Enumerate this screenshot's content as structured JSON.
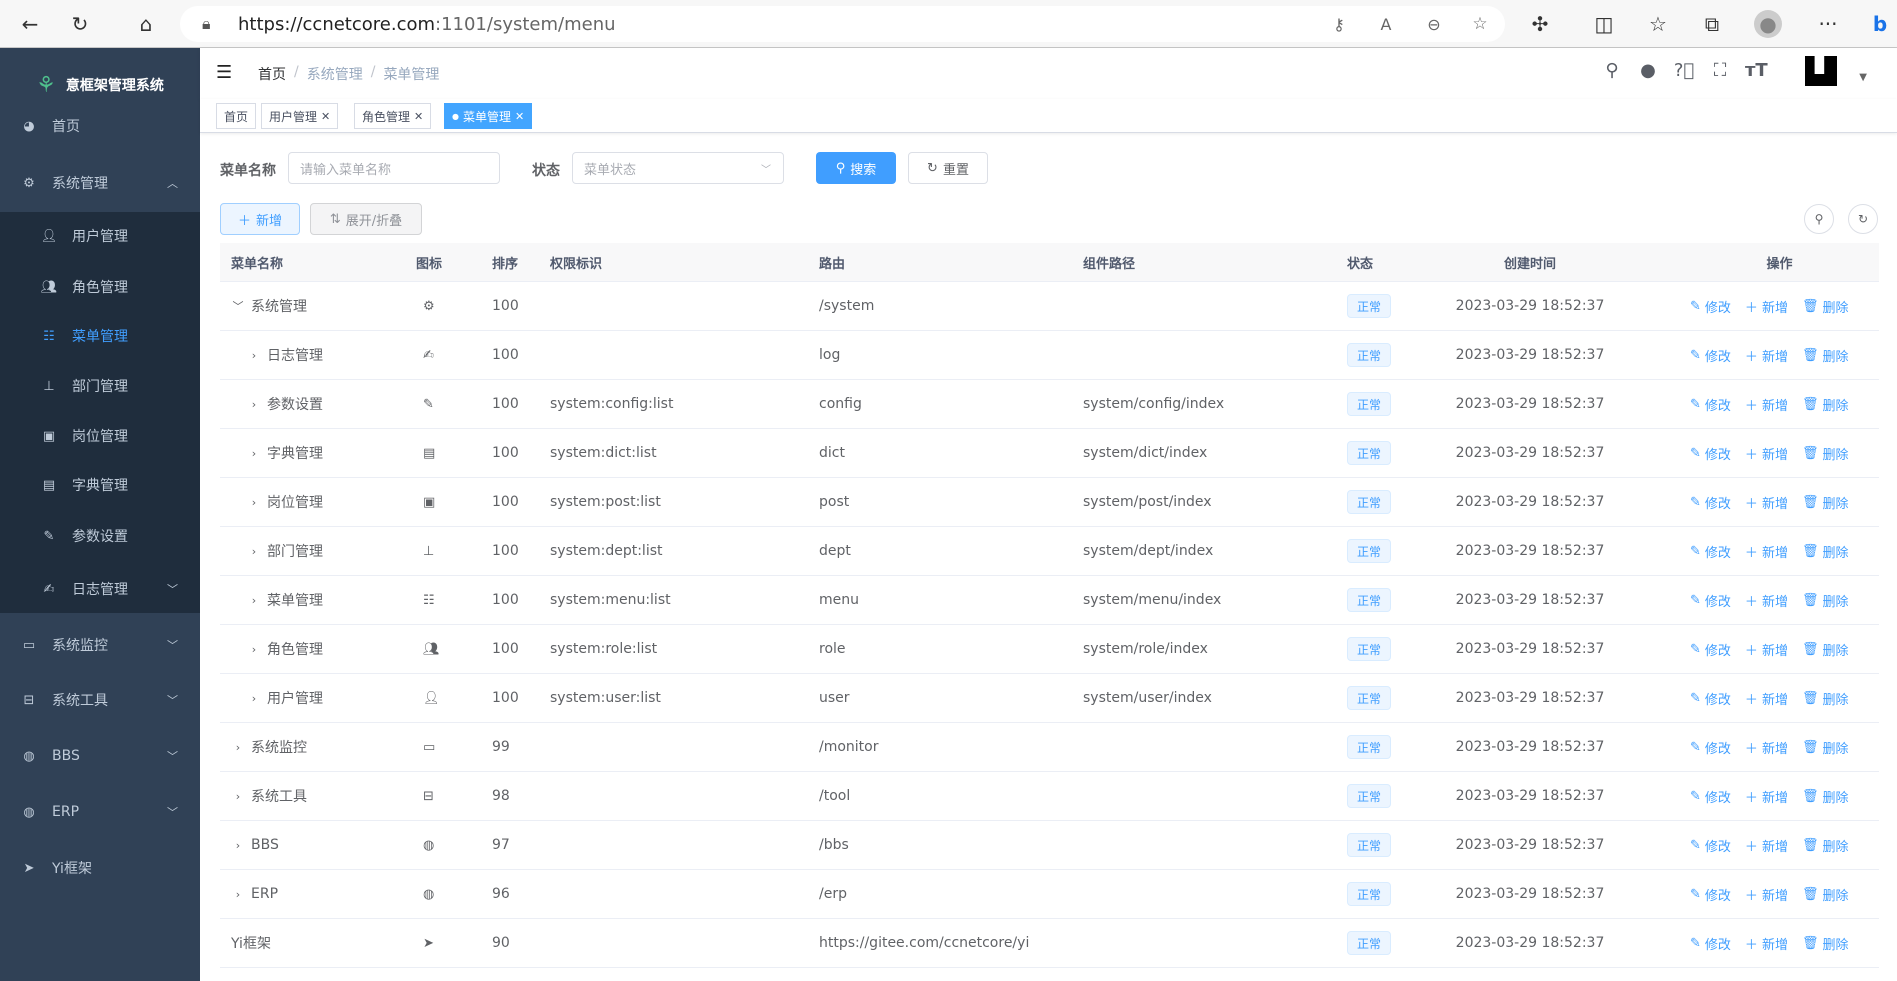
{
  "browser": {
    "url_host": "https://ccnetcore.com",
    "url_path": ":1101/system/menu",
    "icons": [
      "back-icon",
      "refresh-icon",
      "home-icon",
      "lock-icon",
      "key-icon",
      "read-aloud-icon",
      "zoom-out-icon",
      "add-favorite-icon",
      "extensions-icon",
      "split-screen-icon",
      "favorites-icon",
      "collections-icon",
      "profile-icon",
      "more-icon",
      "bing-icon"
    ]
  },
  "sidebar": {
    "logo_text": "意框架管理系统",
    "items": [
      {
        "label": "首页",
        "icon": "dashboard-icon",
        "level": "top",
        "arrow": ""
      },
      {
        "label": "系统管理",
        "icon": "gear-icon",
        "level": "top",
        "arrow": "up"
      },
      {
        "label": "用户管理",
        "icon": "user-icon",
        "level": "child",
        "arrow": ""
      },
      {
        "label": "角色管理",
        "icon": "peoples-icon",
        "level": "child",
        "arrow": ""
      },
      {
        "label": "菜单管理",
        "icon": "tree-table-icon",
        "level": "child",
        "arrow": "",
        "active": true
      },
      {
        "label": "部门管理",
        "icon": "tree-icon",
        "level": "child",
        "arrow": ""
      },
      {
        "label": "岗位管理",
        "icon": "post-icon",
        "level": "child",
        "arrow": ""
      },
      {
        "label": "字典管理",
        "icon": "dict-icon",
        "level": "child",
        "arrow": ""
      },
      {
        "label": "参数设置",
        "icon": "edit-icon",
        "level": "child",
        "arrow": ""
      },
      {
        "label": "日志管理",
        "icon": "log-icon",
        "level": "child",
        "arrow": "down"
      },
      {
        "label": "系统监控",
        "icon": "monitor-icon",
        "level": "top",
        "arrow": "down"
      },
      {
        "label": "系统工具",
        "icon": "tool-icon",
        "level": "top",
        "arrow": "down"
      },
      {
        "label": "BBS",
        "icon": "globe-icon",
        "level": "top",
        "arrow": "down"
      },
      {
        "label": "ERP",
        "icon": "globe-icon",
        "level": "top",
        "arrow": "down"
      },
      {
        "label": "Yi框架",
        "icon": "send-icon",
        "level": "top",
        "arrow": ""
      }
    ]
  },
  "navbar": {
    "breadcrumb": [
      "首页",
      "系统管理",
      "菜单管理"
    ],
    "icons": [
      "search-icon",
      "github-icon",
      "question-icon",
      "fullscreen-icon",
      "font-size-icon"
    ]
  },
  "tags": [
    {
      "label": "首页",
      "closable": false
    },
    {
      "label": "用户管理",
      "closable": true
    },
    {
      "label": "角色管理",
      "closable": true
    },
    {
      "label": "菜单管理",
      "closable": true,
      "active": true
    }
  ],
  "search": {
    "name_label": "菜单名称",
    "name_placeholder": "请输入菜单名称",
    "status_label": "状态",
    "status_placeholder": "菜单状态",
    "search_btn": "搜索",
    "reset_btn": "重置"
  },
  "toolbar": {
    "add_btn": "新增",
    "toggle_btn": "展开/折叠"
  },
  "table": {
    "headers": [
      "菜单名称",
      "图标",
      "排序",
      "权限标识",
      "路由",
      "组件路径",
      "状态",
      "创建时间",
      "操作"
    ],
    "actions": [
      "修改",
      "新增",
      "删除"
    ],
    "rows": [
      {
        "name": "系统管理",
        "level": 0,
        "expand": "expanded",
        "icon": "gear-icon",
        "sort": "100",
        "perm": "",
        "route": "/system",
        "component": "",
        "status": "正常",
        "created": "2023-03-29 18:52:37"
      },
      {
        "name": "日志管理",
        "level": 1,
        "expand": "collapsed",
        "icon": "log-icon",
        "sort": "100",
        "perm": "",
        "route": "log",
        "component": "",
        "status": "正常",
        "created": "2023-03-29 18:52:37"
      },
      {
        "name": "参数设置",
        "level": 1,
        "expand": "collapsed",
        "icon": "edit-icon",
        "sort": "100",
        "perm": "system:config:list",
        "route": "config",
        "component": "system/config/index",
        "status": "正常",
        "created": "2023-03-29 18:52:37"
      },
      {
        "name": "字典管理",
        "level": 1,
        "expand": "collapsed",
        "icon": "dict-icon",
        "sort": "100",
        "perm": "system:dict:list",
        "route": "dict",
        "component": "system/dict/index",
        "status": "正常",
        "created": "2023-03-29 18:52:37"
      },
      {
        "name": "岗位管理",
        "level": 1,
        "expand": "collapsed",
        "icon": "post-icon",
        "sort": "100",
        "perm": "system:post:list",
        "route": "post",
        "component": "system/post/index",
        "status": "正常",
        "created": "2023-03-29 18:52:37"
      },
      {
        "name": "部门管理",
        "level": 1,
        "expand": "collapsed",
        "icon": "tree-icon",
        "sort": "100",
        "perm": "system:dept:list",
        "route": "dept",
        "component": "system/dept/index",
        "status": "正常",
        "created": "2023-03-29 18:52:37"
      },
      {
        "name": "菜单管理",
        "level": 1,
        "expand": "collapsed",
        "icon": "tree-table-icon",
        "sort": "100",
        "perm": "system:menu:list",
        "route": "menu",
        "component": "system/menu/index",
        "status": "正常",
        "created": "2023-03-29 18:52:37"
      },
      {
        "name": "角色管理",
        "level": 1,
        "expand": "collapsed",
        "icon": "peoples-icon",
        "sort": "100",
        "perm": "system:role:list",
        "route": "role",
        "component": "system/role/index",
        "status": "正常",
        "created": "2023-03-29 18:52:37"
      },
      {
        "name": "用户管理",
        "level": 1,
        "expand": "collapsed",
        "icon": "user-icon",
        "sort": "100",
        "perm": "system:user:list",
        "route": "user",
        "component": "system/user/index",
        "status": "正常",
        "created": "2023-03-29 18:52:37"
      },
      {
        "name": "系统监控",
        "level": 0,
        "expand": "collapsed",
        "icon": "monitor-icon",
        "sort": "99",
        "perm": "",
        "route": "/monitor",
        "component": "",
        "status": "正常",
        "created": "2023-03-29 18:52:37"
      },
      {
        "name": "系统工具",
        "level": 0,
        "expand": "collapsed",
        "icon": "tool-icon",
        "sort": "98",
        "perm": "",
        "route": "/tool",
        "component": "",
        "status": "正常",
        "created": "2023-03-29 18:52:37"
      },
      {
        "name": "BBS",
        "level": 0,
        "expand": "collapsed",
        "icon": "globe-icon",
        "sort": "97",
        "perm": "",
        "route": "/bbs",
        "component": "",
        "status": "正常",
        "created": "2023-03-29 18:52:37"
      },
      {
        "name": "ERP",
        "level": 0,
        "expand": "collapsed",
        "icon": "globe-icon",
        "sort": "96",
        "perm": "",
        "route": "/erp",
        "component": "",
        "status": "正常",
        "created": "2023-03-29 18:52:37"
      },
      {
        "name": "Yi框架",
        "level": 0,
        "expand": "none",
        "icon": "send-icon",
        "sort": "90",
        "perm": "",
        "route": "https://gitee.com/ccnetcore/yi",
        "component": "",
        "status": "正常",
        "created": "2023-03-29 18:52:37"
      }
    ]
  },
  "colors": {
    "sidebar_bg": "#304156",
    "submenu_bg": "#1f2d3d",
    "primary": "#409eff",
    "active_tag": "#42a5ff"
  }
}
